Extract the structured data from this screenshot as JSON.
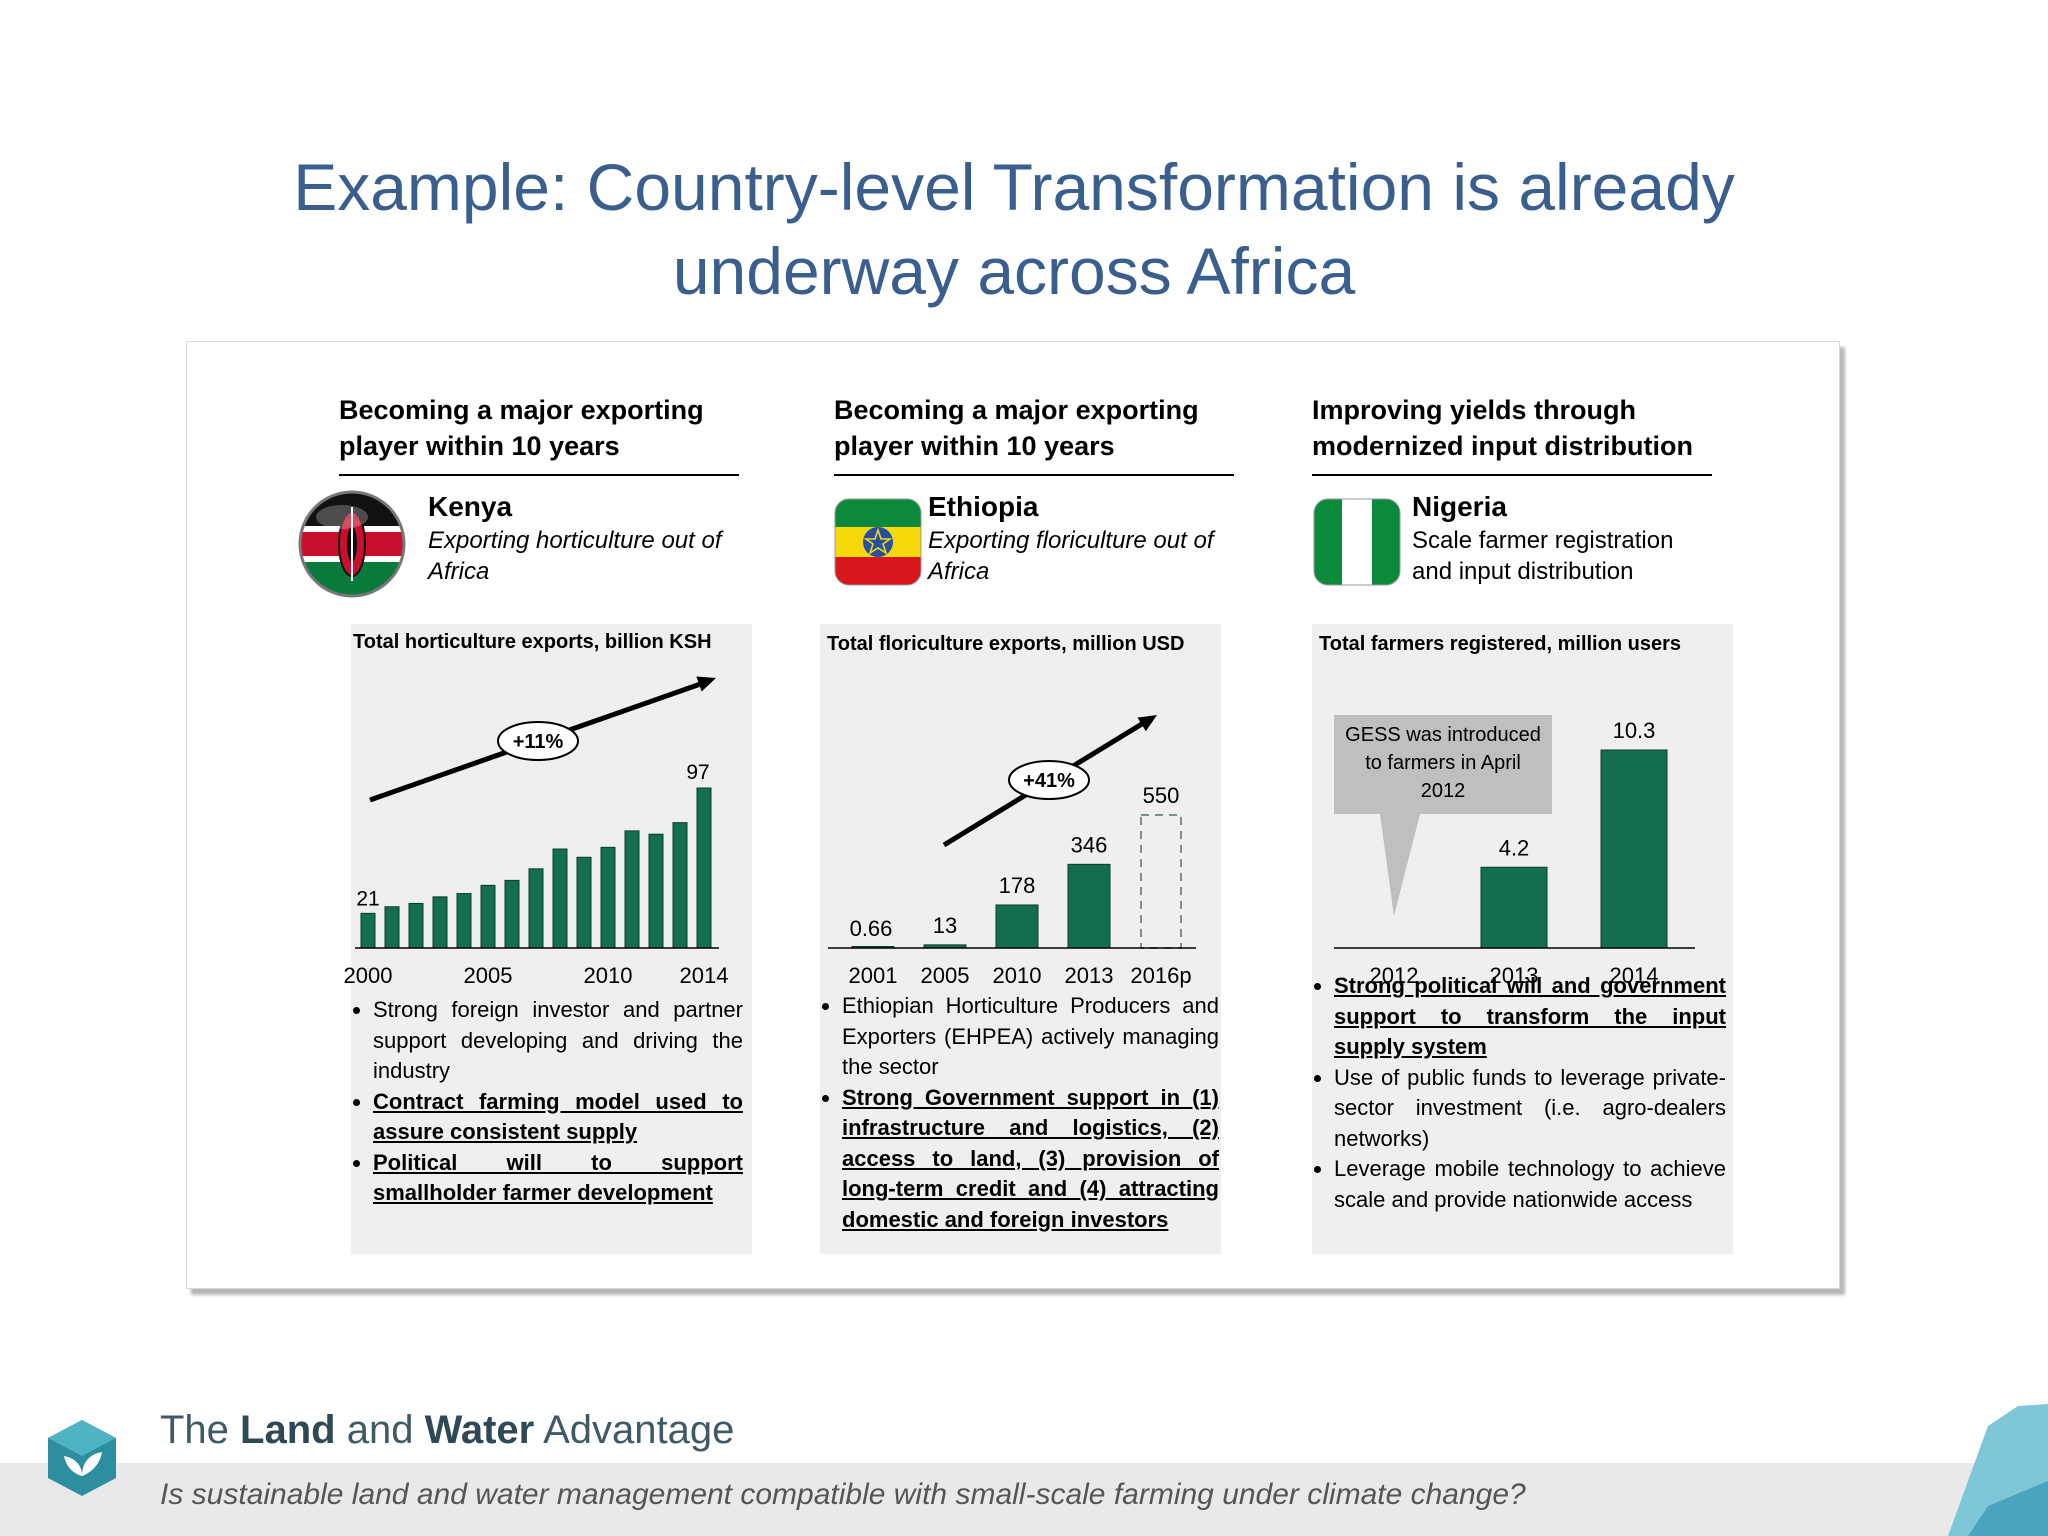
{
  "slide": {
    "title_line1": "Example: Country-level Transformation is already",
    "title_line2": "underway across Africa"
  },
  "columns": [
    {
      "heading_line1": "Becoming a major exporting",
      "heading_line2": "player within 10 years",
      "country": "Kenya",
      "description_line1": "Exporting horticulture out of",
      "description_line2": "Africa",
      "flag_icon": "kenya-flag-icon",
      "bullets": [
        {
          "text": "Strong foreign investor and partner support developing and driving the industry",
          "emphasis": false
        },
        {
          "text": "Contract farming model used to assure consistent supply",
          "emphasis": true
        },
        {
          "text": "Political will to support smallholder farmer development",
          "emphasis": true
        }
      ]
    },
    {
      "heading_line1": "Becoming a major exporting",
      "heading_line2": "player within 10 years",
      "country": "Ethiopia",
      "description_line1": "Exporting floriculture out of",
      "description_line2": "Africa",
      "flag_icon": "ethiopia-flag-icon",
      "bullets": [
        {
          "text": "Ethiopian Horticulture Producers and Exporters (EHPEA) actively managing the sector",
          "emphasis": false
        },
        {
          "text": "Strong Government support in (1) infrastructure and logistics, (2) access to land, (3) provision of long-term credit and (4) attracting domestic and foreign investors",
          "emphasis": true
        }
      ]
    },
    {
      "heading_line1": "Improving yields through",
      "heading_line2": "modernized input distribution",
      "country": "Nigeria",
      "description_line1": "Scale farmer registration",
      "description_line2": "and input distribution",
      "flag_icon": "nigeria-flag-icon",
      "bullets": [
        {
          "text": "Strong political will and government support to transform the input supply system",
          "emphasis": true
        },
        {
          "text": "Use of public funds to leverage private-sector investment (i.e. agro-dealers networks)",
          "emphasis": false
        },
        {
          "text": "Leverage mobile technology to achieve scale and provide nationwide access",
          "emphasis": false
        }
      ]
    }
  ],
  "chart_data": [
    {
      "type": "bar",
      "title": "Total horticulture exports, billion KSH",
      "categories": [
        "2000",
        "2001",
        "2002",
        "2003",
        "2004",
        "2005",
        "2006",
        "2007",
        "2008",
        "2009",
        "2010",
        "2011",
        "2012",
        "2013",
        "2014"
      ],
      "tick_labels": [
        "2000",
        "2005",
        "2010",
        "2014"
      ],
      "values": [
        21,
        25,
        27,
        31,
        33,
        38,
        41,
        48,
        60,
        55,
        61,
        71,
        69,
        76,
        97
      ],
      "data_labels": {
        "first": "21",
        "last": "97"
      },
      "growth_label": "+11%",
      "ylim": [
        0,
        100
      ],
      "color": "#136e4f"
    },
    {
      "type": "bar",
      "title": "Total floriculture exports, million USD",
      "categories": [
        "2001",
        "2005",
        "2010",
        "2013",
        "2016p"
      ],
      "values": [
        0.66,
        13,
        178,
        346,
        550
      ],
      "value_labels": [
        "0.66",
        "13",
        "178",
        "346",
        "550"
      ],
      "projected": [
        false,
        false,
        false,
        false,
        true
      ],
      "growth_label": "+41%",
      "ylim": [
        0,
        600
      ],
      "color": "#136e4f"
    },
    {
      "type": "bar",
      "title": "Total farmers registered, million users",
      "categories": [
        "2012",
        "2013",
        "2014"
      ],
      "values": [
        0,
        4.2,
        10.3
      ],
      "value_labels": [
        "",
        "4.2",
        "10.3"
      ],
      "annotation_line1": "GESS was introduced",
      "annotation_line2": "to farmers in April",
      "annotation_line3": "2012",
      "ylim": [
        0,
        11
      ],
      "color": "#136e4f"
    }
  ],
  "footer": {
    "brand_pre": "The ",
    "brand_bold": "Land",
    "brand_mid": " and ",
    "brand_bold2": "Water",
    "brand_post": " Advantage",
    "subtitle": "Is sustainable land and water management compatible with small-scale farming under climate change?",
    "logo_icon": "leaf-hexagon-icon"
  }
}
